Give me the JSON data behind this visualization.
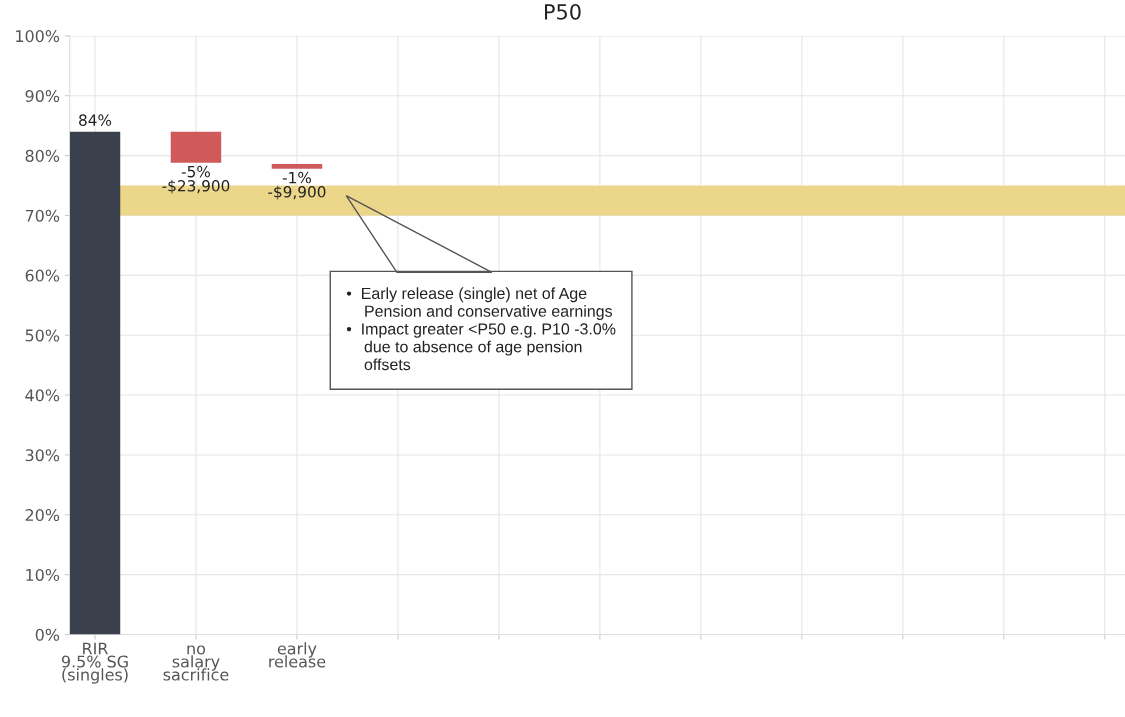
{
  "chart_data": {
    "type": "bar",
    "title": "P50",
    "categories": [
      "RIR\n9.5% SG\n(singles)",
      "no\nsalary\nsacrifice",
      "early\nrelease",
      null,
      null,
      null,
      null,
      null,
      null,
      null,
      null
    ],
    "values": [
      84,
      -5.2,
      -0.8,
      null,
      null,
      null,
      null,
      null,
      null,
      null,
      null
    ],
    "base": [
      0,
      84,
      78.6,
      null,
      null,
      null,
      null,
      null,
      null,
      null,
      null
    ],
    "colors": [
      "#3a414c",
      "#d05a5a",
      "#d05a5a",
      null,
      null,
      null,
      null,
      null,
      null,
      null,
      null
    ],
    "value_labels": [
      "84%",
      "-5%\n-$23,900",
      "-1%\n-$9,900",
      null,
      null,
      null,
      null,
      null,
      null,
      null,
      null
    ],
    "ylim": [
      0,
      100
    ],
    "yticks": [
      {
        "value": 0,
        "label": "0%"
      },
      {
        "value": 10,
        "label": "10%"
      },
      {
        "value": 20,
        "label": "20%"
      },
      {
        "value": 30,
        "label": "30%"
      },
      {
        "value": 40,
        "label": "40%"
      },
      {
        "value": 50,
        "label": "50%"
      },
      {
        "value": 60,
        "label": "60%"
      },
      {
        "value": 70,
        "label": "70%"
      },
      {
        "value": 80,
        "label": "80%"
      },
      {
        "value": 90,
        "label": "90%"
      },
      {
        "value": 100,
        "label": "100%"
      }
    ],
    "bands": [
      {
        "axis": "y",
        "from": 70,
        "to": 75,
        "color": "#ebd68a"
      }
    ],
    "grid": true,
    "annotations": [
      "•  Early release (single) net of Age\n    Pension and conservative earnings\n•  Impact greater <P50 e.g. P10 -3.0%\n    due to absence of age pension\n    offsets"
    ]
  }
}
